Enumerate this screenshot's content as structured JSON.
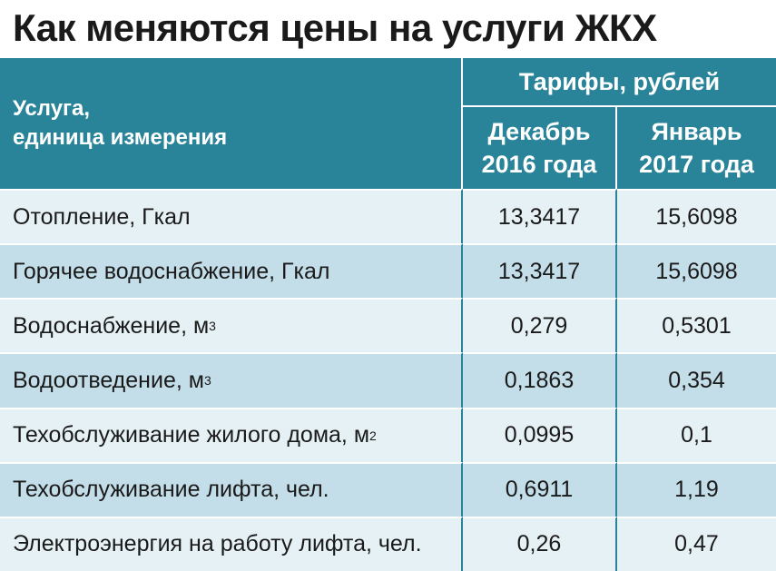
{
  "title": "Как меняются цены на услуги ЖКХ",
  "header": {
    "service_line1": "Услуга,",
    "service_line2": "единица измерения",
    "tariffs": "Тарифы, рублей",
    "dec_line1": "Декабрь",
    "dec_line2": "2016 года",
    "jan_line1": "Январь",
    "jan_line2": "2017 года"
  },
  "rows": [
    {
      "service": "Отопление, Гкал",
      "unit_power": "",
      "dec": "13,3417",
      "jan": "15,6098"
    },
    {
      "service": "Горячее водоснабжение, Гкал",
      "unit_power": "",
      "dec": "13,3417",
      "jan": "15,6098"
    },
    {
      "service": "Водоснабжение, м",
      "unit_power": "3",
      "dec": "0,279",
      "jan": "0,5301"
    },
    {
      "service": "Водоотведение, м",
      "unit_power": "3",
      "dec": "0,1863",
      "jan": "0,354"
    },
    {
      "service": "Техобслуживание жилого дома, м",
      "unit_power": "2",
      "dec": "0,0995",
      "jan": "0,1"
    },
    {
      "service": "Техобслуживание лифта, чел.",
      "unit_power": "",
      "dec": "0,6911",
      "jan": "1,19"
    },
    {
      "service": "Электроэнергия на работу лифта, чел.",
      "unit_power": "",
      "dec": "0,26",
      "jan": "0,47"
    }
  ],
  "colors": {
    "header": "#2a8499",
    "row_light": "#e6f1f6",
    "row_dark": "#c3dde9"
  }
}
